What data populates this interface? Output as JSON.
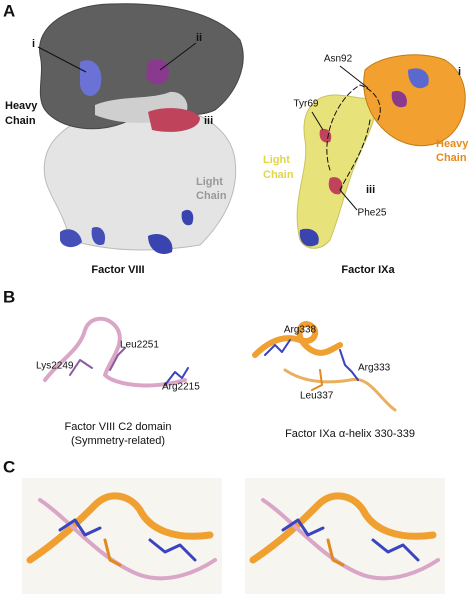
{
  "panel_a": {
    "label": "A",
    "factor_viii": {
      "title": "Factor VIII",
      "heavy_chain": [
        "Heavy",
        "Chain"
      ],
      "light_chain": [
        "Light",
        "Chain"
      ],
      "sites": [
        "i",
        "ii",
        "iii"
      ]
    },
    "factor_ixa": {
      "title": "Factor IXa",
      "residues": [
        "Asn92",
        "Tyr69",
        "Phe25"
      ],
      "sites": [
        "i",
        "iii"
      ],
      "light_chain": [
        "Light",
        "Chain"
      ],
      "heavy_chain": [
        "Heavy",
        "Chain"
      ]
    }
  },
  "panel_b": {
    "label": "B",
    "left": {
      "residues": [
        "Lys2249",
        "Leu2251",
        "Arg2215"
      ],
      "caption": [
        "Factor VIII C2 domain",
        "(Symmetry-related)"
      ]
    },
    "right": {
      "residues": [
        "Arg338",
        "Arg333",
        "Leu337"
      ],
      "caption": "Factor IXa α-helix 330-339"
    }
  },
  "panel_c": {
    "label": "C"
  }
}
